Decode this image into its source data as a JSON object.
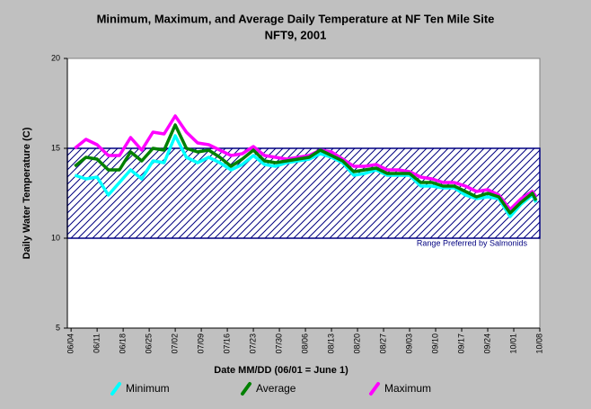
{
  "chart_data": {
    "type": "line",
    "title": "Minimum, Maximum, and Average Daily Temperature at NF Ten Mile Site",
    "subtitle": "NFT9, 2001",
    "x_label": "Date MM/DD (06/01 = June 1)",
    "y_label": "Daily Water Temperature (C)",
    "x": [
      "06/05",
      "06/08",
      "06/11",
      "06/14",
      "06/17",
      "06/20",
      "06/23",
      "06/26",
      "06/29",
      "07/02",
      "07/05",
      "07/08",
      "07/11",
      "07/14",
      "07/17",
      "07/20",
      "07/23",
      "07/26",
      "07/29",
      "08/01",
      "08/04",
      "08/07",
      "08/10",
      "08/13",
      "08/16",
      "08/19",
      "08/22",
      "08/25",
      "08/28",
      "08/31",
      "09/03",
      "09/06",
      "09/09",
      "09/12",
      "09/15",
      "09/18",
      "09/21",
      "09/24",
      "09/27",
      "09/30",
      "10/03",
      "10/06",
      "10/07"
    ],
    "series": [
      {
        "name": "Minimum",
        "color": "#00ffff",
        "values": [
          13.5,
          13.3,
          13.4,
          12.4,
          13.1,
          13.8,
          13.3,
          14.3,
          14.2,
          15.7,
          14.5,
          14.2,
          14.5,
          14.2,
          13.8,
          14.1,
          14.6,
          14.1,
          14.0,
          14.2,
          14.3,
          14.4,
          14.7,
          14.5,
          14.2,
          13.5,
          13.6,
          13.8,
          13.5,
          13.5,
          13.5,
          12.9,
          12.9,
          12.8,
          12.8,
          12.4,
          12.2,
          12.3,
          12.2,
          11.2,
          11.9,
          12.4,
          12.0
        ]
      },
      {
        "name": "Average",
        "color": "#008000",
        "values": [
          14.0,
          14.5,
          14.4,
          13.8,
          13.8,
          14.8,
          14.3,
          15.0,
          14.9,
          16.3,
          15.0,
          14.8,
          14.9,
          14.5,
          14.0,
          14.4,
          14.9,
          14.3,
          14.2,
          14.3,
          14.4,
          14.5,
          14.9,
          14.6,
          14.3,
          13.7,
          13.8,
          13.9,
          13.6,
          13.6,
          13.6,
          13.1,
          13.1,
          12.9,
          12.9,
          12.6,
          12.3,
          12.5,
          12.3,
          11.4,
          12.0,
          12.5,
          12.1
        ]
      },
      {
        "name": "Maximum",
        "color": "#ff00ff",
        "values": [
          15.0,
          15.5,
          15.2,
          14.6,
          14.6,
          15.6,
          14.9,
          15.9,
          15.8,
          16.8,
          15.9,
          15.3,
          15.2,
          14.9,
          14.6,
          14.7,
          15.1,
          14.6,
          14.5,
          14.4,
          14.5,
          14.6,
          14.9,
          14.8,
          14.4,
          14.0,
          14.0,
          14.1,
          13.8,
          13.8,
          13.7,
          13.4,
          13.3,
          13.1,
          13.1,
          12.9,
          12.6,
          12.7,
          12.4,
          11.6,
          12.2,
          12.6,
          12.3
        ]
      }
    ],
    "band": {
      "range": [
        10,
        15
      ],
      "label": "Range Preferred by Salmonids",
      "color": "#000080"
    },
    "xlim": [
      "06/03",
      "10/08"
    ],
    "xticks": [
      "06/04",
      "06/11",
      "06/18",
      "06/25",
      "07/02",
      "07/09",
      "07/16",
      "07/23",
      "07/30",
      "08/06",
      "08/13",
      "08/20",
      "08/27",
      "09/03",
      "09/10",
      "09/17",
      "09/24",
      "10/01",
      "10/08"
    ],
    "ylim": [
      5,
      20
    ],
    "yticks": [
      5,
      10,
      15,
      20
    ],
    "legend": "bottom"
  }
}
